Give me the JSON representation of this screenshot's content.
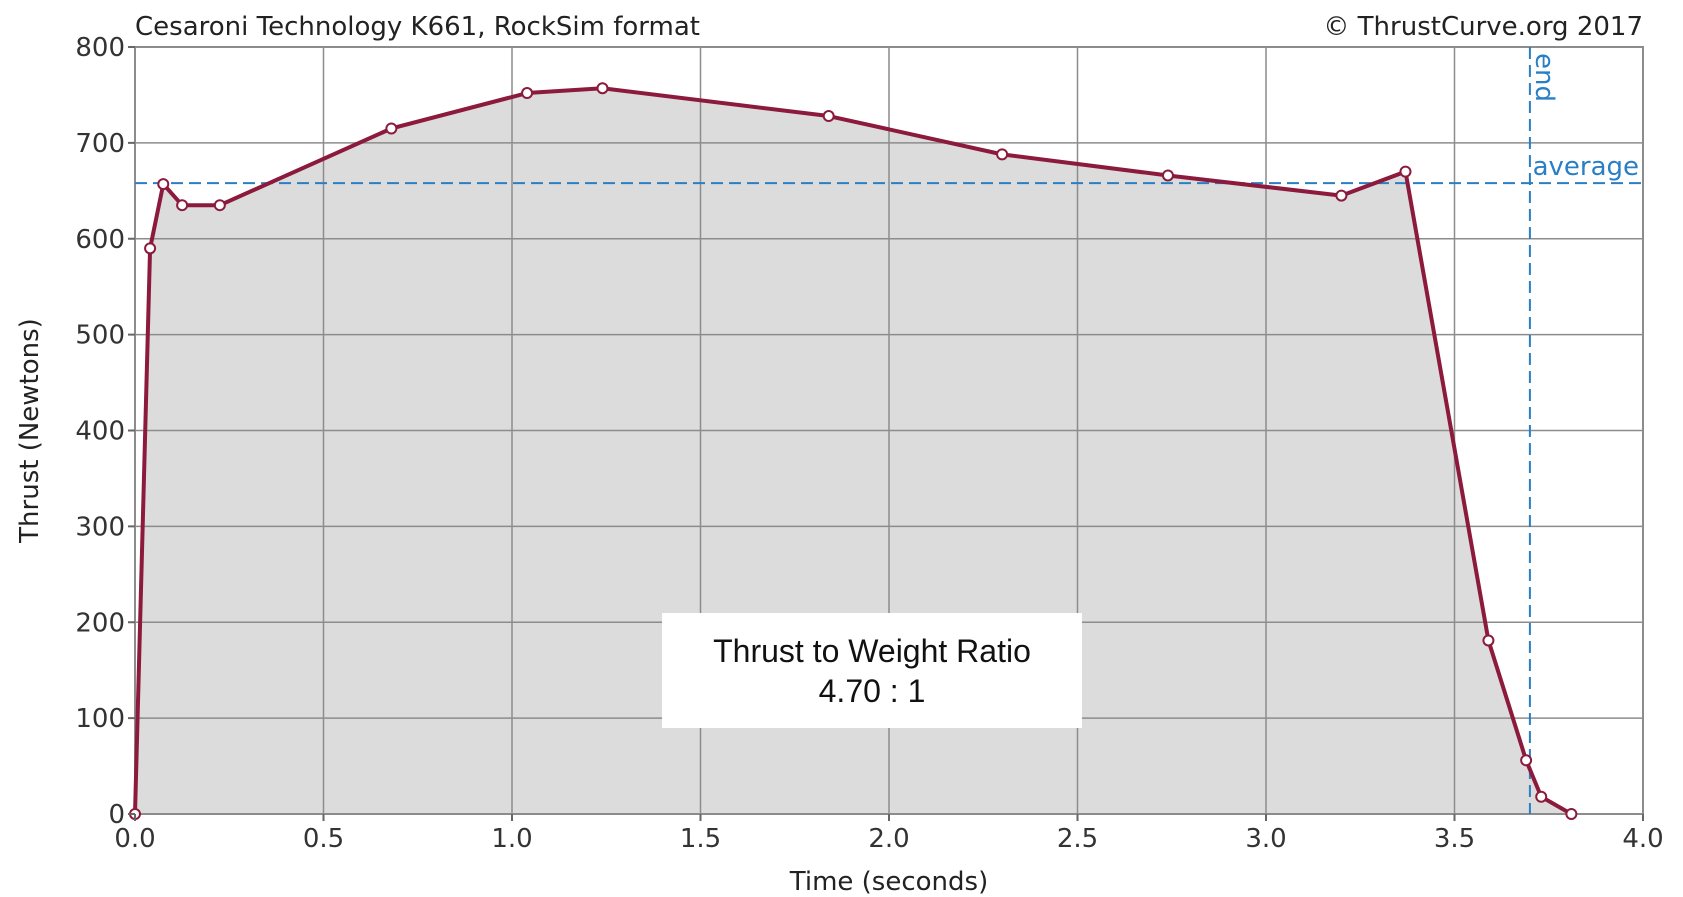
{
  "chart_data": {
    "type": "area",
    "title": "Cesaroni Technology K661, RockSim format",
    "copyright": "© ThrustCurve.org 2017",
    "xlabel": "Time (seconds)",
    "ylabel": "Thrust (Newtons)",
    "xlim": [
      0,
      4.0
    ],
    "ylim": [
      0,
      800
    ],
    "x_ticks": [
      0.0,
      0.5,
      1.0,
      1.5,
      2.0,
      2.5,
      3.0,
      3.5,
      4.0
    ],
    "x_tick_labels": [
      "0.0",
      "0.5",
      "1.0",
      "1.5",
      "2.0",
      "2.5",
      "3.0",
      "3.5",
      "4.0"
    ],
    "y_ticks": [
      0,
      100,
      200,
      300,
      400,
      500,
      600,
      700,
      800
    ],
    "y_tick_labels": [
      "0",
      "100",
      "200",
      "300",
      "400",
      "500",
      "600",
      "700",
      "800"
    ],
    "grid": true,
    "series": [
      {
        "x": [
          0.0,
          0.04,
          0.075,
          0.125,
          0.225,
          0.68,
          1.04,
          1.24,
          1.84,
          2.3,
          2.74,
          3.2,
          3.37,
          3.59,
          3.69,
          3.73,
          3.81
        ],
        "y": [
          0,
          590,
          657,
          635,
          635,
          715,
          752,
          757,
          728,
          688,
          666,
          645,
          670,
          181,
          56,
          18,
          0
        ]
      }
    ],
    "reference_lines": [
      {
        "axis": "y",
        "value": 658,
        "label": "average"
      },
      {
        "axis": "x",
        "value": 3.7,
        "label": "end"
      }
    ],
    "colors": {
      "line": "#8b1a3c",
      "fill": "#dcdcdc",
      "grid": "#8c8c8c",
      "reference": "#2a7fc4"
    },
    "annotation": {
      "line1": "Thrust to Weight Ratio",
      "line2": "4.70 : 1"
    }
  }
}
